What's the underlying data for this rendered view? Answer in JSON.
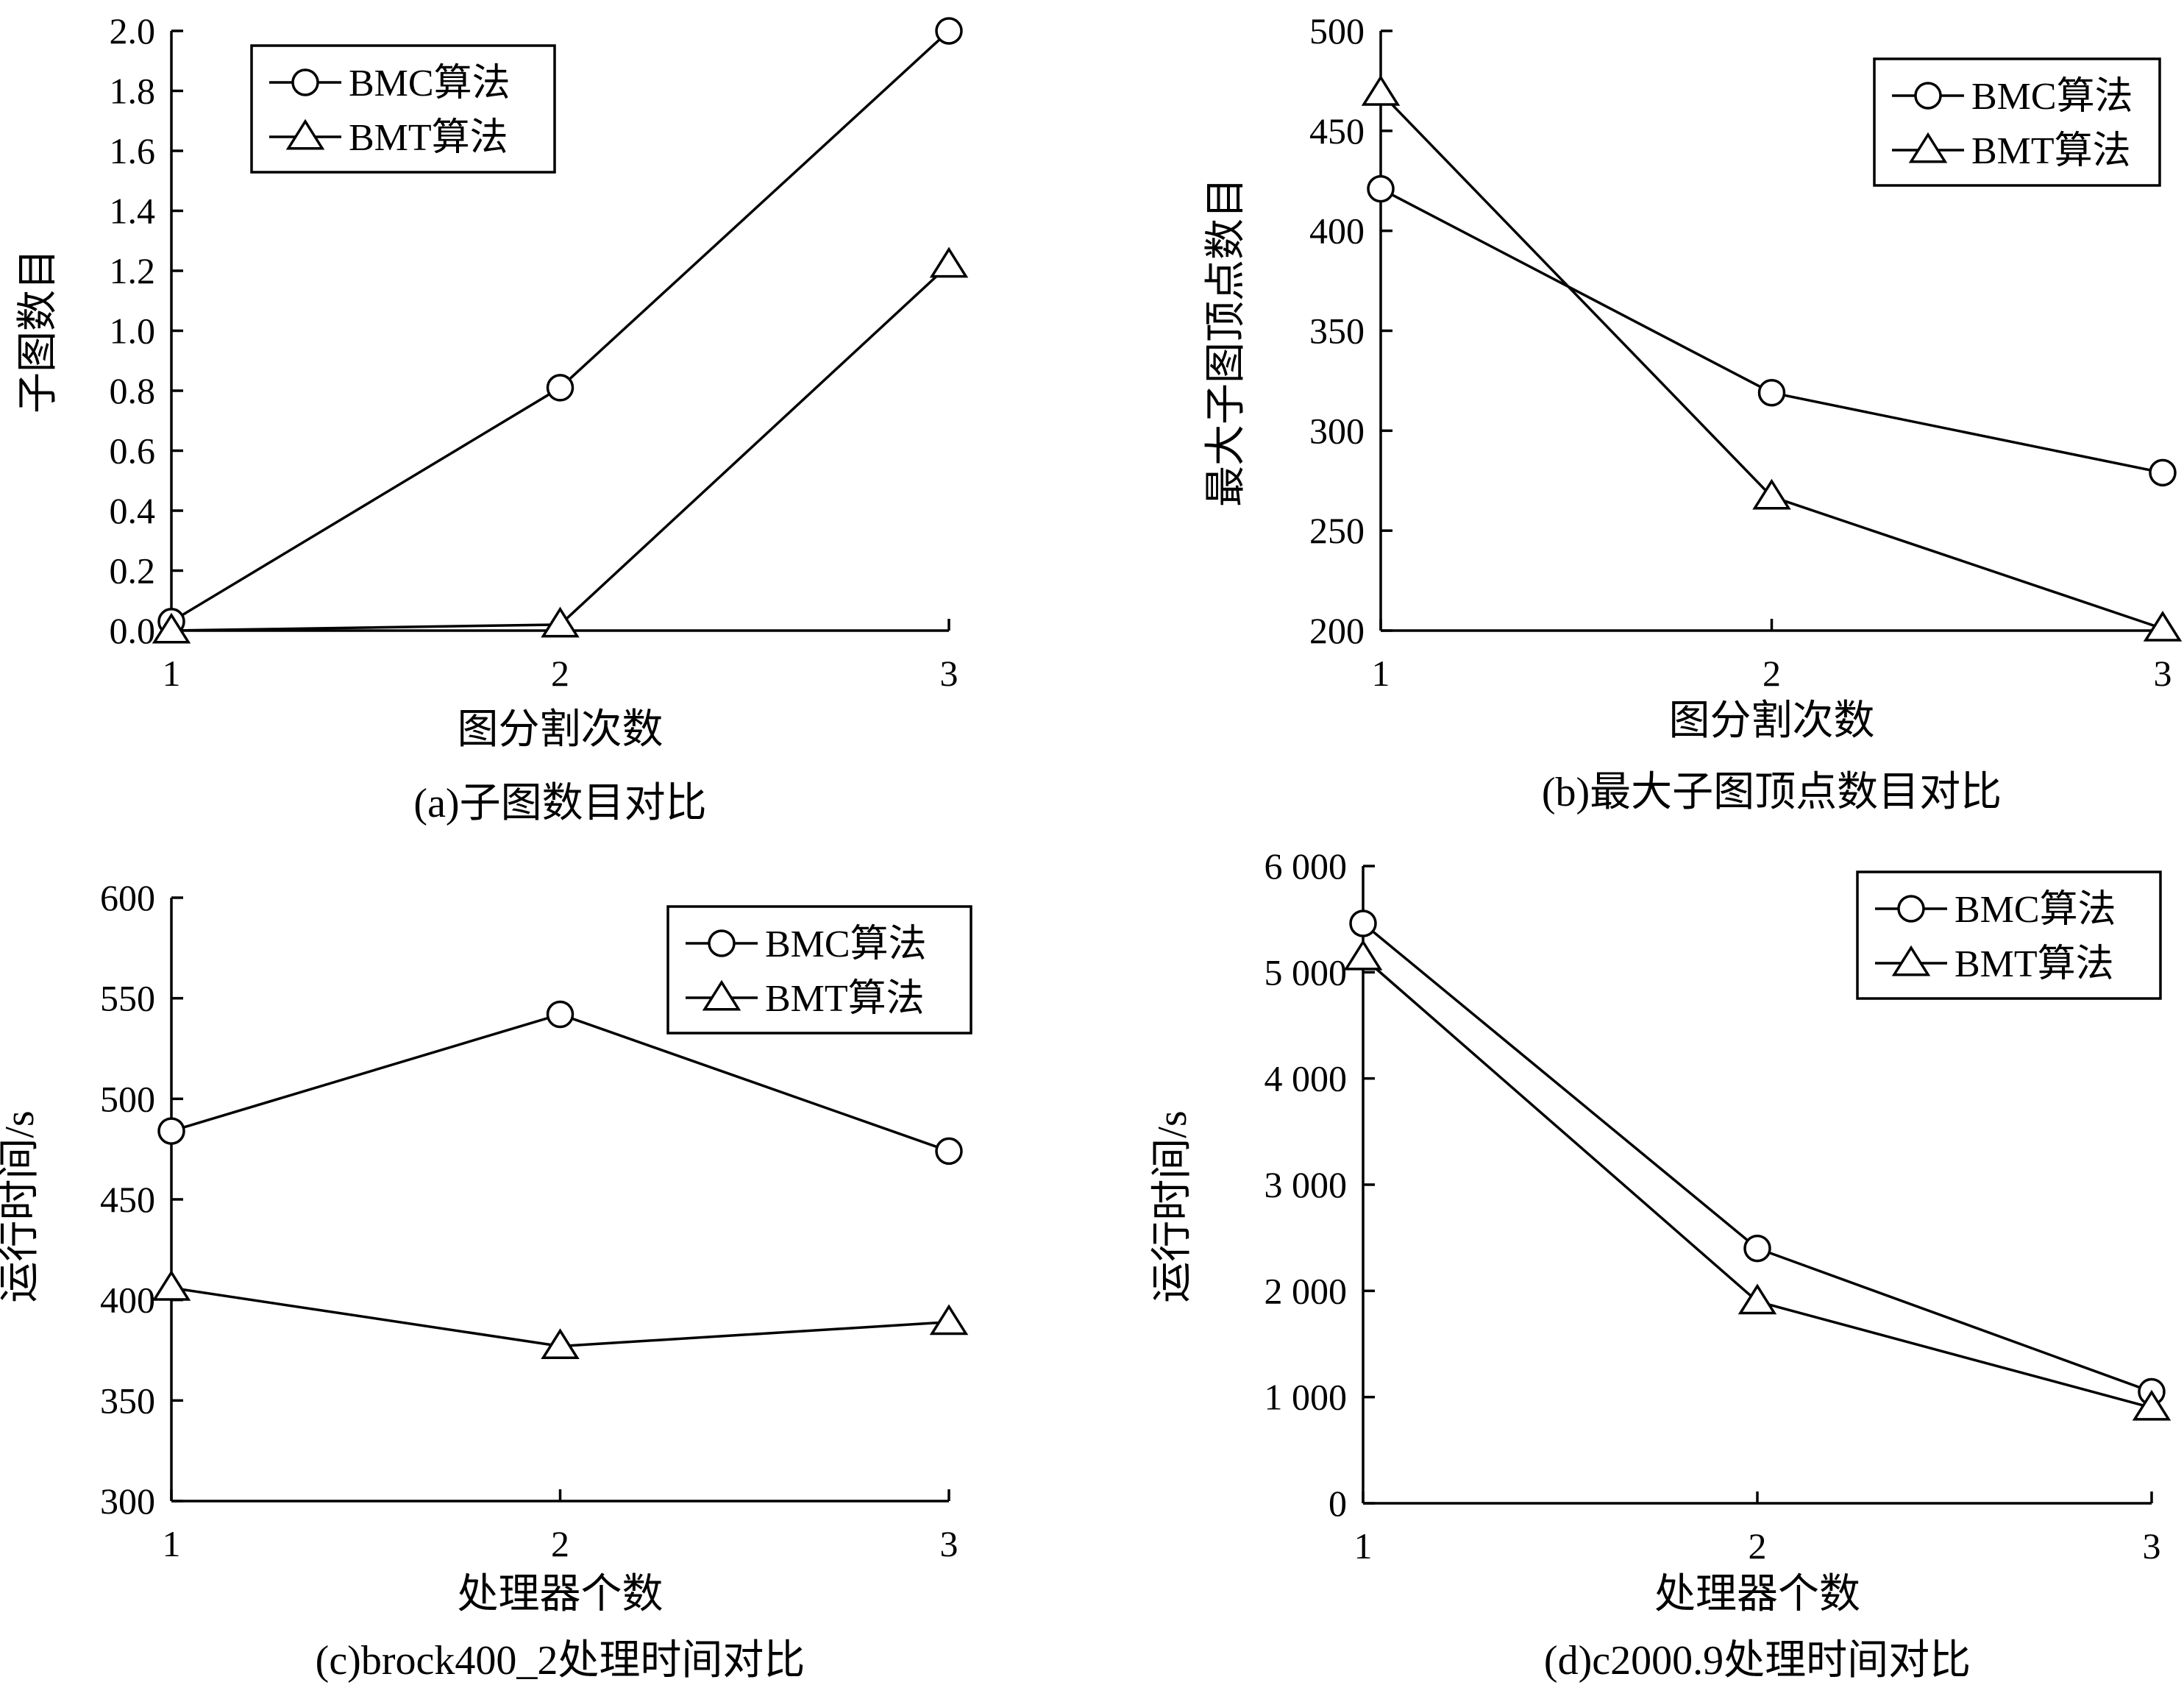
{
  "chart_data": [
    {
      "type": "line",
      "caption": "(a)子图数目对比",
      "xlabel": "图分割次数",
      "ylabel": "子图数目",
      "x": [
        1,
        2,
        3
      ],
      "xticks": [
        "1",
        "2",
        "3"
      ],
      "ylim": [
        0,
        2.0
      ],
      "yticks": [
        0,
        0.2,
        0.4,
        0.6,
        0.8,
        1.0,
        1.2,
        1.4,
        1.6,
        1.8,
        2.0
      ],
      "ytick_labels": [
        "0.0",
        "0.2",
        "0.4",
        "0.6",
        "0.8",
        "1.0",
        "1.2",
        "1.4",
        "1.6",
        "1.8",
        "2.0"
      ],
      "legend_position": "top-left",
      "series": [
        {
          "name": "BMC算法",
          "marker": "circle",
          "values": [
            0.03,
            0.81,
            2.0
          ]
        },
        {
          "name": "BMT算法",
          "marker": "triangle",
          "values": [
            0.0,
            0.02,
            1.22
          ]
        }
      ]
    },
    {
      "type": "line",
      "caption": "(b)最大子图顶点数目对比",
      "xlabel": "图分割次数",
      "ylabel": "最大子图顶点数目",
      "x": [
        1,
        2,
        3
      ],
      "xticks": [
        "1",
        "2",
        "3"
      ],
      "ylim": [
        200,
        500
      ],
      "yticks": [
        200,
        250,
        300,
        350,
        400,
        450,
        500
      ],
      "ytick_labels": [
        "200",
        "250",
        "300",
        "350",
        "400",
        "450",
        "500"
      ],
      "legend_position": "top-right",
      "series": [
        {
          "name": "BMC算法",
          "marker": "circle",
          "values": [
            421,
            319,
            279
          ]
        },
        {
          "name": "BMT算法",
          "marker": "triangle",
          "values": [
            469,
            267,
            201
          ]
        }
      ]
    },
    {
      "type": "line",
      "caption": "(c)brock400_2处理时间对比",
      "xlabel": "处理器个数",
      "ylabel": "运行时间/s",
      "x": [
        1,
        2,
        3
      ],
      "xticks": [
        "1",
        "2",
        "3"
      ],
      "ylim": [
        300,
        600
      ],
      "yticks": [
        300,
        350,
        400,
        450,
        500,
        550,
        600
      ],
      "ytick_labels": [
        "300",
        "350",
        "400",
        "450",
        "500",
        "550",
        "600"
      ],
      "legend_position": "top-right",
      "series": [
        {
          "name": "BMC算法",
          "marker": "circle",
          "values": [
            484,
            542,
            474
          ]
        },
        {
          "name": "BMT算法",
          "marker": "triangle",
          "values": [
            406,
            377,
            389
          ]
        }
      ]
    },
    {
      "type": "line",
      "caption": "(d)c2000.9处理时间对比",
      "xlabel": "处理器个数",
      "ylabel": "运行时间/s",
      "x": [
        1,
        2,
        3
      ],
      "xticks": [
        "1",
        "2",
        "3"
      ],
      "ylim": [
        0,
        6000
      ],
      "yticks": [
        0,
        1000,
        2000,
        3000,
        4000,
        5000,
        6000
      ],
      "ytick_labels": [
        "0",
        "1 000",
        "2 000",
        "3 000",
        "4 000",
        "5 000",
        "6 000"
      ],
      "legend_position": "top-right",
      "series": [
        {
          "name": "BMC算法",
          "marker": "circle",
          "values": [
            5460,
            2400,
            1050
          ]
        },
        {
          "name": "BMT算法",
          "marker": "triangle",
          "values": [
            5140,
            1900,
            900
          ]
        }
      ]
    }
  ]
}
